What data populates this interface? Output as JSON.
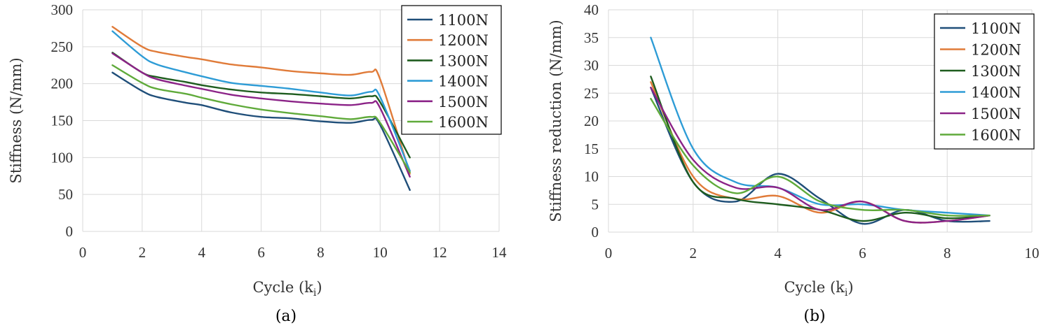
{
  "chart_data": [
    {
      "type": "line",
      "id": "a",
      "caption": "(a)",
      "xlabel": "Cycle (k",
      "xlabel_sub": "i",
      "xlabel_end": ")",
      "ylabel": "Stiffness (N/mm)",
      "xlim": [
        0,
        14
      ],
      "ylim": [
        0,
        300
      ],
      "xticks": [
        "0",
        "2",
        "4",
        "6",
        "8",
        "10",
        "12",
        "14"
      ],
      "yticks": [
        "0",
        "50",
        "100",
        "150",
        "200",
        "250",
        "300"
      ],
      "grid": true,
      "legend_position": "top-right",
      "series": [
        {
          "name": "1100N",
          "color": "#1f4e79",
          "x": [
            1,
            2,
            2.5,
            3.5,
            4,
            5,
            6,
            7,
            8,
            9,
            9.7,
            10,
            11
          ],
          "y": [
            215,
            190,
            182,
            174,
            171,
            161,
            155,
            153,
            149,
            147,
            151,
            144,
            56
          ]
        },
        {
          "name": "1200N",
          "color": "#e07b39",
          "x": [
            1,
            2,
            2.5,
            3.5,
            4,
            5,
            6,
            7,
            8,
            9,
            9.7,
            10,
            11
          ],
          "y": [
            277,
            250,
            243,
            236,
            233,
            226,
            222,
            217,
            214,
            212,
            216,
            206,
            78
          ]
        },
        {
          "name": "1300N",
          "color": "#1e5c1e",
          "x": [
            1,
            2,
            2.5,
            3.5,
            4,
            5,
            6,
            7,
            8,
            9,
            9.7,
            10,
            11
          ],
          "y": [
            242,
            215,
            209,
            202,
            198,
            192,
            188,
            186,
            183,
            180,
            183,
            175,
            100
          ]
        },
        {
          "name": "1400N",
          "color": "#2e9cd6",
          "x": [
            1,
            2,
            2.5,
            3.5,
            4,
            5,
            6,
            7,
            8,
            9,
            9.7,
            10,
            11
          ],
          "y": [
            271,
            237,
            226,
            215,
            210,
            201,
            197,
            193,
            188,
            184,
            189,
            182,
            82
          ]
        },
        {
          "name": "1500N",
          "color": "#8b2387",
          "x": [
            1,
            2,
            2.5,
            3.5,
            4,
            5,
            6,
            7,
            8,
            9,
            9.7,
            10,
            11
          ],
          "y": [
            241,
            215,
            206,
            197,
            193,
            185,
            180,
            176,
            173,
            171,
            174,
            167,
            74
          ]
        },
        {
          "name": "1600N",
          "color": "#5faa3a",
          "x": [
            1,
            2,
            2.5,
            3.5,
            4,
            5,
            6,
            7,
            8,
            9,
            9.7,
            10,
            11
          ],
          "y": [
            225,
            201,
            193,
            186,
            181,
            172,
            165,
            160,
            156,
            152,
            155,
            147,
            80
          ]
        }
      ]
    },
    {
      "type": "line",
      "id": "b",
      "caption": "(b)",
      "xlabel": "Cycle (k",
      "xlabel_sub": "i",
      "xlabel_end": ")",
      "ylabel": "Stiffness reduction (N/mm)",
      "xlim": [
        0,
        10
      ],
      "ylim": [
        0,
        40
      ],
      "xticks": [
        "0",
        "2",
        "4",
        "6",
        "8",
        "10"
      ],
      "yticks": [
        "0",
        "5",
        "10",
        "15",
        "20",
        "25",
        "30",
        "35",
        "40"
      ],
      "grid": true,
      "legend_position": "top-right",
      "series": [
        {
          "name": "1100N",
          "color": "#1f4e79",
          "x": [
            1,
            2,
            3,
            4,
            5,
            6,
            7,
            8,
            9
          ],
          "y": [
            26,
            9,
            5.5,
            10.5,
            6,
            1.5,
            4,
            2,
            2
          ]
        },
        {
          "name": "1200N",
          "color": "#e07b39",
          "x": [
            1,
            2,
            3,
            4,
            5,
            6,
            7,
            8,
            9
          ],
          "y": [
            27,
            10,
            6,
            6.5,
            3.5,
            5.5,
            2,
            2,
            3
          ]
        },
        {
          "name": "1300N",
          "color": "#1e5c1e",
          "x": [
            1,
            2,
            3,
            4,
            5,
            6,
            7,
            8,
            9
          ],
          "y": [
            28,
            9,
            6,
            5,
            4,
            2,
            3.5,
            2.5,
            3
          ]
        },
        {
          "name": "1400N",
          "color": "#2e9cd6",
          "x": [
            1,
            2,
            3,
            4,
            5,
            6,
            7,
            8,
            9
          ],
          "y": [
            35,
            15,
            9,
            8,
            5,
            5,
            4,
            3.5,
            3
          ]
        },
        {
          "name": "1500N",
          "color": "#8b2387",
          "x": [
            1,
            2,
            3,
            4,
            5,
            6,
            7,
            8,
            9
          ],
          "y": [
            26,
            13,
            8,
            8,
            4,
            5.5,
            2,
            2,
            3
          ]
        },
        {
          "name": "1600N",
          "color": "#5faa3a",
          "x": [
            1,
            2,
            3,
            4,
            5,
            6,
            7,
            8,
            9
          ],
          "y": [
            24,
            12,
            7,
            10,
            5.5,
            4,
            4,
            3,
            3
          ]
        }
      ]
    }
  ]
}
